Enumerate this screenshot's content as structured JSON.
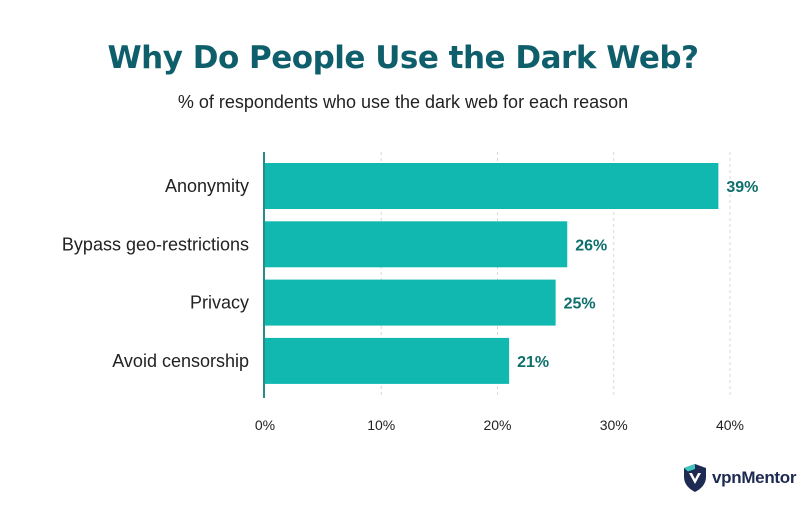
{
  "colors": {
    "bar": "#10b8b0",
    "title": "#0e5f6b",
    "value": "#0e6f6b",
    "grid": "#d8d8d8",
    "axis": "#2a8c86"
  },
  "brand": {
    "name": "vpnMentor",
    "icon": "shield-logo-icon"
  },
  "chart_data": {
    "type": "bar",
    "orientation": "horizontal",
    "title": "Why Do People Use the Dark Web?",
    "subtitle": "% of respondents who use the dark web for each reason",
    "categories": [
      "Anonymity",
      "Bypass geo-restrictions",
      "Privacy",
      "Avoid censorship"
    ],
    "values": [
      39,
      26,
      25,
      21
    ],
    "value_labels": [
      "39%",
      "26%",
      "25%",
      "21%"
    ],
    "xlim": [
      0,
      40
    ],
    "xticks": [
      0,
      10,
      20,
      30,
      40
    ],
    "xtick_labels": [
      "0%",
      "10%",
      "20%",
      "30%",
      "40%"
    ],
    "grid": true,
    "legend": "none"
  }
}
